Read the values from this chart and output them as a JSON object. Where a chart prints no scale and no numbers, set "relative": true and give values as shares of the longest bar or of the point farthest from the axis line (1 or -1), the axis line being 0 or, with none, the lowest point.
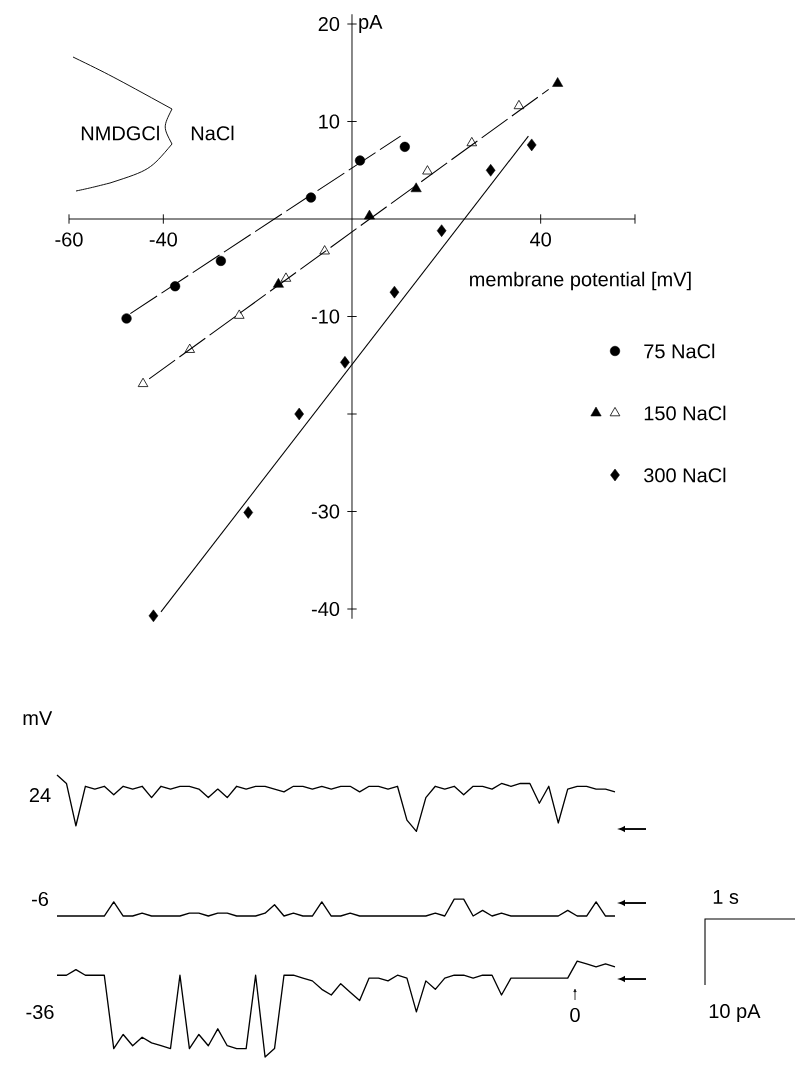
{
  "chart_data": [
    {
      "type": "scatter",
      "xlabel": "membrane potential [mV]",
      "ylabel": "pA",
      "xlim": [
        -60,
        60
      ],
      "ylim": [
        -41,
        21
      ],
      "xticks": [
        -60,
        -40,
        40,
        {
          "value": 60,
          "label": null
        }
      ],
      "yticks": [
        -40,
        -30,
        {
          "value": -20,
          "label": null
        },
        -10,
        10,
        20
      ],
      "legend": "right",
      "annotations": [
        "NMDGCl",
        "NaCl"
      ],
      "series": [
        {
          "name": "75 NaCl",
          "color": "#000000",
          "marker": "circle",
          "x": [
            -47.8,
            -37.5,
            -27.8,
            -8.7,
            1.7,
            11.2
          ],
          "values": [
            -10.2,
            -6.9,
            -4.3,
            2.2,
            6.0,
            7.4
          ]
        },
        {
          "name": "150 NaCl",
          "color": "#000000",
          "marker": "triangle-open",
          "x": [
            -44.3,
            -34.4,
            -23.9,
            -14.0,
            -5.8,
            16.0,
            25.4,
            35.4
          ],
          "values": [
            -16.9,
            -13.4,
            -9.9,
            -6.1,
            -3.3,
            4.9,
            7.8,
            11.6
          ]
        },
        {
          "color": "#000000",
          "marker": "triangle",
          "x": [
            -15.6,
            3.7,
            13.6,
            43.6
          ],
          "values": [
            -6.7,
            0.3,
            3.1,
            13.9
          ]
        },
        {
          "name": "300 NaCl",
          "color": "#000000",
          "marker": "diamond",
          "x": [
            -42.1,
            -22.0,
            -11.2,
            -1.5,
            9.0,
            19.0,
            29.4,
            38.1
          ],
          "values": [
            -40.7,
            -30.1,
            -20.0,
            -14.7,
            -7.5,
            -1.2,
            5.0,
            7.6
          ]
        },
        {
          "type": "line",
          "color": "#000000",
          "marker": "none",
          "line_style": "dashed",
          "x": [
            -47,
            10.3
          ],
          "values": [
            -9.7,
            8.5
          ]
        },
        {
          "type": "line",
          "color": "#000000",
          "marker": "none",
          "line_style": "dashed",
          "x": [
            -43,
            41.7
          ],
          "values": [
            -16.4,
            13.3
          ]
        },
        {
          "type": "line",
          "color": "#000000",
          "marker": "none",
          "line_style": "solid",
          "x": [
            -40.5,
            37.4
          ],
          "values": [
            -40.3,
            8.5
          ]
        }
      ]
    },
    {
      "type": "line",
      "relative": true,
      "annotations": [
        "mV",
        "24",
        "-6",
        "-36",
        "0",
        "1 s",
        "10 pA"
      ],
      "categories": [
        null,
        null,
        null,
        null,
        null,
        null,
        null,
        null,
        null,
        null,
        null,
        null,
        null,
        null,
        null,
        null,
        null,
        null,
        null,
        null,
        null,
        null,
        null,
        null,
        null,
        null,
        null,
        null,
        null,
        null,
        null,
        null,
        null,
        null,
        null,
        null,
        null,
        null,
        null,
        null,
        null,
        null,
        null,
        null,
        null,
        null,
        null,
        null,
        null,
        null,
        null,
        null,
        null,
        null,
        null,
        null,
        null,
        null,
        null,
        null
      ],
      "series": [
        {
          "color": "#000000",
          "values": [
            1.0,
            0.97,
            0.82,
            0.96,
            0.95,
            0.96,
            0.93,
            0.96,
            0.95,
            0.96,
            0.92,
            0.96,
            0.95,
            0.96,
            0.96,
            0.95,
            0.92,
            0.95,
            0.92,
            0.96,
            0.95,
            0.96,
            0.96,
            0.95,
            0.94,
            0.96,
            0.96,
            0.95,
            0.96,
            0.95,
            0.96,
            0.96,
            0.94,
            0.96,
            0.96,
            0.95,
            0.96,
            0.84,
            0.8,
            0.92,
            0.96,
            0.95,
            0.96,
            0.93,
            0.96,
            0.96,
            0.95,
            0.97,
            0.96,
            0.97,
            0.97,
            0.9,
            0.96,
            0.83,
            0.95,
            0.96,
            0.96,
            0.95,
            0.95,
            0.94
          ]
        },
        {
          "color": "#000000",
          "values": [
            0.5,
            0.5,
            0.5,
            0.5,
            0.5,
            0.5,
            0.55,
            0.5,
            0.5,
            0.51,
            0.5,
            0.5,
            0.5,
            0.5,
            0.51,
            0.51,
            0.5,
            0.51,
            0.51,
            0.5,
            0.5,
            0.5,
            0.51,
            0.54,
            0.5,
            0.51,
            0.5,
            0.5,
            0.55,
            0.5,
            0.5,
            0.51,
            0.5,
            0.5,
            0.5,
            0.5,
            0.5,
            0.5,
            0.5,
            0.5,
            0.51,
            0.5,
            0.56,
            0.56,
            0.5,
            0.52,
            0.5,
            0.51,
            0.5,
            0.5,
            0.5,
            0.5,
            0.5,
            0.5,
            0.52,
            0.5,
            0.5,
            0.55,
            0.5,
            0.5
          ]
        },
        {
          "color": "#000000",
          "values": [
            0.29,
            0.29,
            0.31,
            0.29,
            0.29,
            0.29,
            0.03,
            0.08,
            0.04,
            0.07,
            0.05,
            0.04,
            0.03,
            0.29,
            0.03,
            0.08,
            0.04,
            0.1,
            0.04,
            0.03,
            0.03,
            0.29,
            0.0,
            0.03,
            0.29,
            0.29,
            0.28,
            0.27,
            0.24,
            0.22,
            0.26,
            0.23,
            0.2,
            0.28,
            0.28,
            0.27,
            0.29,
            0.28,
            0.16,
            0.27,
            0.24,
            0.28,
            0.29,
            0.29,
            0.28,
            0.29,
            0.29,
            0.22,
            0.28,
            0.28,
            0.28,
            0.28,
            0.28,
            0.28,
            0.28,
            0.34,
            0.33,
            0.32,
            0.33,
            0.32
          ]
        }
      ]
    }
  ]
}
